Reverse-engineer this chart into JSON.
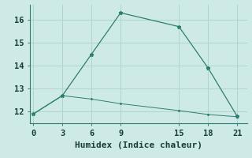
{
  "line1_x": [
    0,
    3,
    6,
    9,
    15,
    18,
    21
  ],
  "line1_y": [
    11.9,
    12.7,
    14.5,
    16.3,
    15.7,
    13.9,
    11.8
  ],
  "line2_x": [
    0,
    3,
    6,
    9,
    15,
    18,
    21
  ],
  "line2_y": [
    11.9,
    12.7,
    12.55,
    12.35,
    12.05,
    11.88,
    11.78
  ],
  "line_color": "#2e7d72",
  "marker": "*",
  "xlabel": "Humidex (Indice chaleur)",
  "xticks": [
    0,
    3,
    6,
    9,
    15,
    18,
    21
  ],
  "yticks": [
    12,
    13,
    14,
    15,
    16
  ],
  "ylim": [
    11.5,
    16.65
  ],
  "xlim": [
    -0.3,
    22.0
  ],
  "bg_color": "#ceeae7",
  "grid_color": "#b0d4d0",
  "font_family": "monospace",
  "xlabel_fontsize": 8,
  "tick_fontsize": 7.5
}
